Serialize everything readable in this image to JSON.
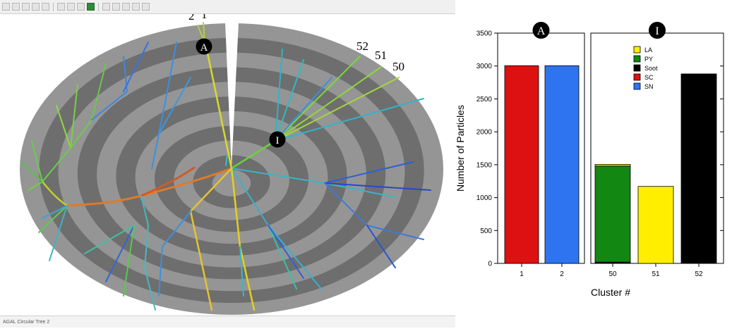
{
  "window": {
    "status_text": "AGAL Circular Tree 2",
    "toolbar_icons": [
      "new-icon",
      "open-icon",
      "save-icon",
      "print-icon",
      "pin-icon",
      "tree-icon",
      "zoom-in-icon",
      "zoom-out-icon",
      "grid-icon",
      "arrow-left-icon",
      "arrow-right-icon",
      "arrow-up-icon",
      "arrow-down-icon",
      "select-icon"
    ]
  },
  "tree": {
    "labels": {
      "leaf_2": "2",
      "leaf_1": "1",
      "leaf_52": "52",
      "leaf_51": "51",
      "leaf_50": "50",
      "marker_a": "A",
      "marker_i": "I"
    },
    "colors": {
      "background": "#8a8a8a",
      "ring_dark": "#6e6e6e",
      "ring_light": "#959595"
    }
  },
  "chart_data": {
    "type": "bar",
    "ylabel": "Number of Particles",
    "xlabel": "Cluster #",
    "ylim": [
      0,
      3500
    ],
    "yticks": [
      "0",
      "500",
      "1000",
      "1500",
      "2000",
      "2500",
      "3000",
      "3500"
    ],
    "panels": [
      {
        "label": "A",
        "categories": [
          "1",
          "2"
        ]
      },
      {
        "label": "I",
        "categories": [
          "50",
          "51",
          "52"
        ]
      }
    ],
    "categories": [
      "1",
      "2",
      "50",
      "51",
      "52"
    ],
    "series": [
      {
        "name": "LA",
        "color": "#ffee00",
        "values": [
          0,
          0,
          25,
          1170,
          0
        ]
      },
      {
        "name": "PY",
        "color": "#128712",
        "values": [
          0,
          0,
          1460,
          0,
          0
        ]
      },
      {
        "name": "Soot",
        "color": "#000000",
        "values": [
          0,
          0,
          20,
          0,
          2880
        ]
      },
      {
        "name": "SC",
        "color": "#dd1111",
        "values": [
          3005,
          0,
          0,
          0,
          0
        ]
      },
      {
        "name": "SN",
        "color": "#2e74f0",
        "values": [
          0,
          3005,
          0,
          0,
          0
        ]
      }
    ],
    "legend_position": "top-right of panel I"
  }
}
